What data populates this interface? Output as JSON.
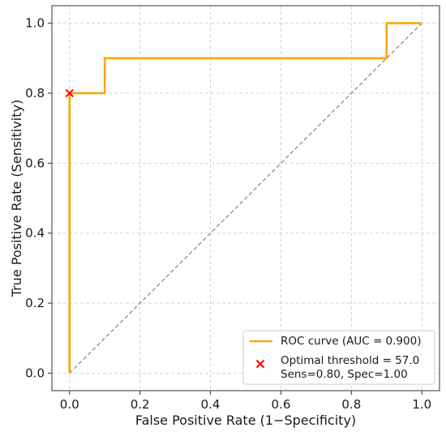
{
  "chart_data": {
    "type": "line",
    "title": "",
    "xlabel": "False Positive Rate (1−Specificity)",
    "ylabel": "True Positive Rate (Sensitivity)",
    "xlim": [
      -0.05,
      1.05
    ],
    "ylim": [
      -0.05,
      1.05
    ],
    "xticks": [
      0.0,
      0.2,
      0.4,
      0.6,
      0.8,
      1.0
    ],
    "yticks": [
      0.0,
      0.2,
      0.4,
      0.6,
      0.8,
      1.0
    ],
    "xtick_labels": [
      "0.0",
      "0.2",
      "0.4",
      "0.6",
      "0.8",
      "1.0"
    ],
    "ytick_labels": [
      "0.0",
      "0.2",
      "0.4",
      "0.6",
      "0.8",
      "1.0"
    ],
    "grid": true,
    "legend_position": "lower-right",
    "series": [
      {
        "name": "ROC curve (AUC = 0.900)",
        "kind": "step-line",
        "color": "#ffa500",
        "x": [
          0.0,
          0.0,
          0.0,
          0.1,
          0.1,
          0.9,
          0.9,
          1.0
        ],
        "y": [
          0.0,
          0.8,
          0.8,
          0.8,
          0.9,
          0.9,
          1.0,
          1.0
        ]
      },
      {
        "name": "",
        "kind": "diagonal-reference",
        "color": "#808080",
        "x": [
          0.0,
          1.0
        ],
        "y": [
          0.0,
          1.0
        ]
      },
      {
        "name": "Optimal threshold = 57.0\nSens=0.80, Spec=1.00",
        "kind": "marker",
        "marker": "x",
        "color": "#ff0000",
        "x": [
          0.0
        ],
        "y": [
          0.8
        ]
      }
    ],
    "legend": [
      {
        "label_lines": [
          "ROC curve (AUC = 0.900)"
        ],
        "symbol": "line",
        "color": "#ffa500"
      },
      {
        "label_lines": [
          "Optimal threshold = 57.0",
          "Sens=0.80, Spec=1.00"
        ],
        "symbol": "x",
        "color": "#ff0000"
      }
    ]
  }
}
